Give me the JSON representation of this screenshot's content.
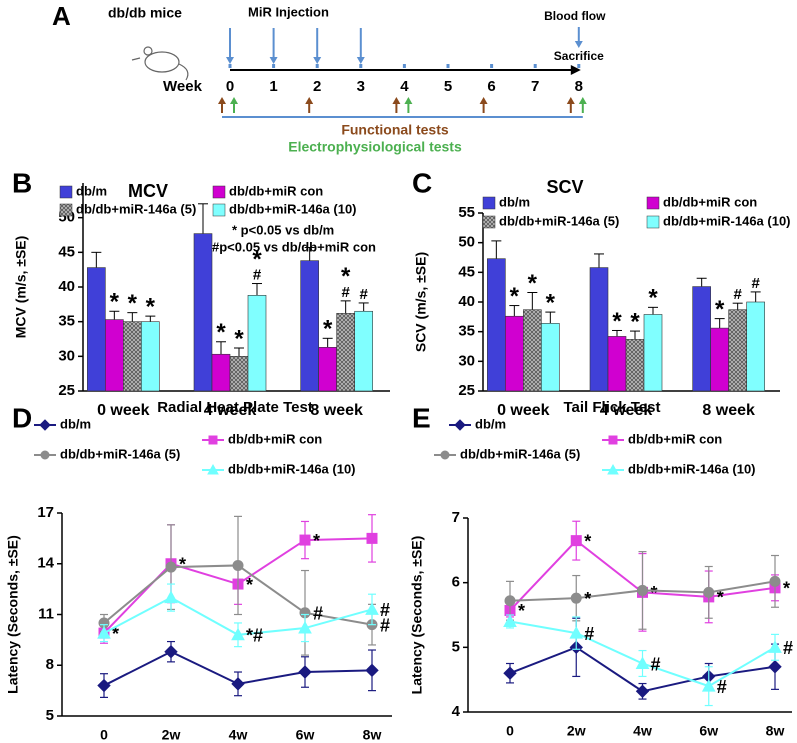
{
  "timeline": {
    "panel": "A",
    "subject": "db/db mice",
    "injection_label": "MiR Injection",
    "blood_flow_label": "Blood flow",
    "sacrifice_label": "Sacrifice",
    "axis_label": "Week",
    "weeks": [
      0,
      1,
      2,
      3,
      4,
      5,
      6,
      7,
      8
    ],
    "injection_weeks": [
      0,
      1,
      2,
      3
    ],
    "functional_weeks": [
      0,
      2,
      4,
      6,
      8
    ],
    "electro_weeks": [
      0,
      4,
      8
    ],
    "functional_label": "Functional tests",
    "electro_label": "Electrophysiological tests"
  },
  "chart_data": [
    {
      "type": "bar",
      "panel": "B",
      "title": "MCV",
      "ylabel": "MCV (m/s, ±SE)",
      "categories": [
        "0 week",
        "4 week",
        "8 week"
      ],
      "ylim": [
        25,
        55
      ],
      "yticks": [
        25,
        30,
        35,
        40,
        45,
        50
      ],
      "notes": [
        "* p<0.05 vs db/m",
        "#p<0.05 vs db/db+miR con"
      ],
      "series": [
        {
          "name": "db/m",
          "color": "#4040d8",
          "values": [
            42.8,
            47.7,
            43.8
          ],
          "errors": [
            2.2,
            4.3,
            1.9
          ]
        },
        {
          "name": "db/db+miR con",
          "color": "#d000d0",
          "values": [
            35.3,
            30.3,
            31.3
          ],
          "errors": [
            1.2,
            1.8,
            1.3
          ],
          "markers": [
            [
              "*"
            ],
            [
              "*"
            ],
            [
              "*"
            ]
          ]
        },
        {
          "name": "db/db+miR-146a (5)",
          "color": "#a8a8a8",
          "hatch": true,
          "values": [
            35.0,
            30.0,
            36.2
          ],
          "errors": [
            1.3,
            1.2,
            1.8
          ],
          "markers": [
            [
              "*"
            ],
            [
              "*"
            ],
            [
              "*",
              "#"
            ]
          ]
        },
        {
          "name": "db/db+miR-146a (10)",
          "color": "#80ffff",
          "values": [
            35.0,
            38.8,
            36.5
          ],
          "errors": [
            0.8,
            1.7,
            1.2
          ],
          "markers": [
            [
              "*"
            ],
            [
              "*",
              "#"
            ],
            [
              "#"
            ]
          ]
        }
      ]
    },
    {
      "type": "bar",
      "panel": "C",
      "title": "SCV",
      "ylabel": "SCV (m/s, ±SE)",
      "categories": [
        "0 week",
        "4 week",
        "8 week"
      ],
      "ylim": [
        25,
        55
      ],
      "yticks": [
        25,
        30,
        35,
        40,
        45,
        50,
        55
      ],
      "series": [
        {
          "name": "db/m",
          "color": "#4040d8",
          "values": [
            47.3,
            45.8,
            42.6
          ],
          "errors": [
            3.0,
            2.3,
            1.4
          ]
        },
        {
          "name": "db/db+miR  con",
          "color": "#d000d0",
          "values": [
            37.6,
            34.2,
            35.6
          ],
          "errors": [
            1.8,
            1.0,
            1.6
          ],
          "markers": [
            [
              "*"
            ],
            [
              "*"
            ],
            [
              "*"
            ]
          ]
        },
        {
          "name": "db/db+miR-146a (5)",
          "color": "#a8a8a8",
          "hatch": true,
          "values": [
            38.7,
            33.7,
            38.7
          ],
          "errors": [
            2.9,
            1.4,
            1.1
          ],
          "markers": [
            [
              "*"
            ],
            [
              "*"
            ],
            [
              "#"
            ]
          ]
        },
        {
          "name": "db/db+miR-146a (10)",
          "color": "#80ffff",
          "values": [
            36.4,
            37.9,
            40.0
          ],
          "errors": [
            1.9,
            1.2,
            1.7
          ],
          "markers": [
            [
              "*"
            ],
            [
              "*"
            ],
            [
              "#"
            ]
          ]
        }
      ]
    },
    {
      "type": "line",
      "panel": "D",
      "title": "Radial Heat Plate Test",
      "ylabel": "Latency (Seconds, ±SE)",
      "categories": [
        "0",
        "2w",
        "4w",
        "6w",
        "8w"
      ],
      "ylim": [
        5,
        17
      ],
      "yticks": [
        5,
        8,
        11,
        14,
        17
      ],
      "series": [
        {
          "name": "db/m",
          "color": "#1a1a80",
          "marker": "diamond",
          "values": [
            6.8,
            8.8,
            6.9,
            7.6,
            7.7
          ],
          "errors": [
            0.7,
            0.6,
            0.7,
            0.9,
            1.2
          ]
        },
        {
          "name": "db/db+miR con",
          "color": "#e040e0",
          "marker": "square",
          "values": [
            9.9,
            14.0,
            12.8,
            15.4,
            15.5
          ],
          "errors": [
            0.6,
            2.3,
            1.2,
            1.1,
            1.4
          ],
          "markers": [
            "*",
            "*",
            "*",
            "*",
            null
          ]
        },
        {
          "name": "db/db+miR-146a (5)",
          "color": "#8c8c8c",
          "marker": "circle",
          "values": [
            10.5,
            13.8,
            13.9,
            11.1,
            10.4
          ],
          "errors": [
            0.5,
            2.5,
            2.9,
            2.5,
            1.2
          ],
          "markers": [
            null,
            null,
            null,
            "#",
            "#"
          ]
        },
        {
          "name": "db/db+miR-146a (10)",
          "color": "#70ffff",
          "marker": "triangle",
          "values": [
            9.9,
            12.0,
            9.8,
            10.2,
            11.3
          ],
          "errors": [
            0.5,
            0.8,
            0.7,
            0.8,
            0.9
          ],
          "markers": [
            null,
            null,
            "*#",
            null,
            "#"
          ]
        }
      ]
    },
    {
      "type": "line",
      "panel": "E",
      "title": "Tail Flick Test",
      "ylabel": "Latency (Seconds, ±SE)",
      "categories": [
        "0",
        "2w",
        "4w",
        "6w",
        "8w"
      ],
      "ylim": [
        4,
        7
      ],
      "yticks": [
        4,
        5,
        6,
        7
      ],
      "series": [
        {
          "name": "db/m",
          "color": "#1a1a80",
          "marker": "diamond",
          "values": [
            4.6,
            5.0,
            4.32,
            4.55,
            4.7
          ],
          "errors": [
            0.15,
            0.45,
            0.12,
            0.2,
            0.35
          ]
        },
        {
          "name": "db/db+miR con",
          "color": "#e040e0",
          "marker": "square",
          "values": [
            5.57,
            6.65,
            5.85,
            5.78,
            5.92
          ],
          "errors": [
            0.1,
            0.3,
            0.6,
            0.4,
            0.2
          ],
          "markers": [
            "*",
            "*",
            "*",
            "*",
            "*"
          ]
        },
        {
          "name": "db/db+miR-146a (5)",
          "color": "#8c8c8c",
          "marker": "circle",
          "values": [
            5.72,
            5.76,
            5.88,
            5.85,
            6.02
          ],
          "errors": [
            0.3,
            0.35,
            0.6,
            0.4,
            0.4
          ],
          "markers": [
            null,
            "*",
            null,
            null,
            null
          ]
        },
        {
          "name": "db/db+miR-146a (10)",
          "color": "#70ffff",
          "marker": "triangle",
          "values": [
            5.4,
            5.22,
            4.75,
            4.4,
            5.0
          ],
          "errors": [
            0.1,
            0.25,
            0.2,
            0.3,
            0.2
          ],
          "markers": [
            null,
            "#",
            "#",
            "#",
            "#"
          ]
        }
      ]
    }
  ]
}
